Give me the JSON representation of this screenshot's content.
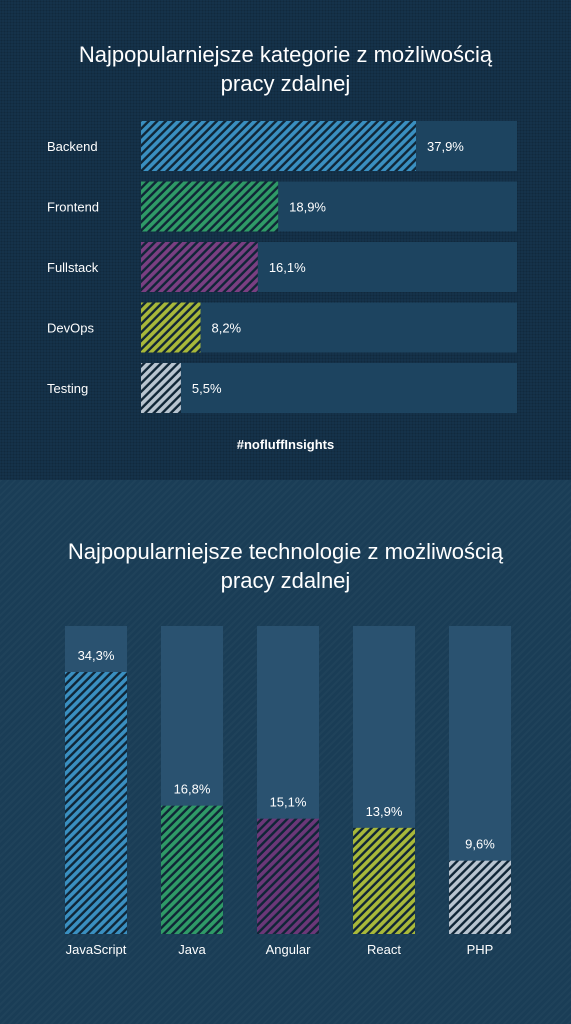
{
  "chart_data": [
    {
      "type": "bar",
      "orientation": "horizontal",
      "title": "Najpopularniejsze kategorie z możliwością\npracy zdalnej",
      "categories": [
        "Backend",
        "Frontend",
        "Fullstack",
        "DevOps",
        "Testing"
      ],
      "values": [
        37.9,
        18.9,
        16.1,
        8.2,
        5.5
      ],
      "value_labels": [
        "37,9%",
        "18,9%",
        "16,1%",
        "8,2%",
        "5,5%"
      ],
      "xlim": [
        0,
        50
      ],
      "colors": [
        "#3a8fc0",
        "#2f9a67",
        "#7a3f82",
        "#a8b83a",
        "#b8c4d0"
      ],
      "footer": "#nofluffInsights"
    },
    {
      "type": "bar",
      "orientation": "vertical",
      "title": "Najpopularniejsze technologie z możliwością\npracy zdalnej",
      "categories": [
        "JavaScript",
        "Java",
        "Angular",
        "React",
        "PHP"
      ],
      "values": [
        34.3,
        16.8,
        15.1,
        13.9,
        9.6
      ],
      "value_labels": [
        "34,3%",
        "16,8%",
        "15,1%",
        "13,9%",
        "9,6%"
      ],
      "ylim": [
        0,
        42
      ],
      "colors": [
        "#3a8fc0",
        "#2f9a67",
        "#6b3778",
        "#a8b83a",
        "#b8c4d0"
      ]
    }
  ]
}
